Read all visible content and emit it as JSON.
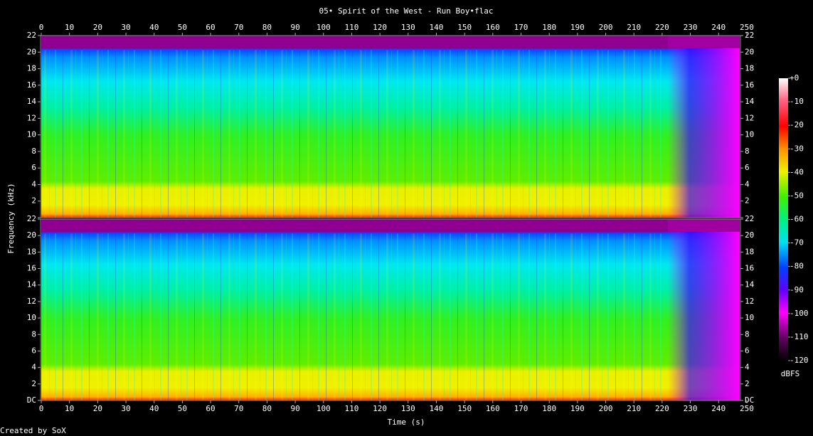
{
  "chart_data": {
    "type": "spectrogram",
    "title": "05• Spirit of the West - Run Boy•flac",
    "x_label": "Time (s)",
    "y_label": "Frequency (kHz)",
    "xlim": [
      0,
      247.5
    ],
    "xticks": [
      0,
      10,
      20,
      30,
      40,
      50,
      60,
      70,
      80,
      90,
      100,
      110,
      120,
      130,
      140,
      150,
      160,
      170,
      180,
      190,
      200,
      210,
      220,
      230,
      240,
      250
    ],
    "ylim": [
      0,
      22
    ],
    "yticks": [
      {
        "value": 0,
        "label": "DC"
      },
      2,
      4,
      6,
      8,
      10,
      12,
      14,
      16,
      18,
      20,
      22
    ],
    "colorbar": {
      "label": "dBFS",
      "lim": [
        -120,
        0
      ],
      "ticks": [
        {
          "value": 0,
          "label": "+0"
        },
        -10,
        -20,
        -30,
        -40,
        -50,
        -60,
        -70,
        -80,
        -90,
        -100,
        -110,
        -120
      ]
    },
    "footer": "Created by SoX"
  }
}
